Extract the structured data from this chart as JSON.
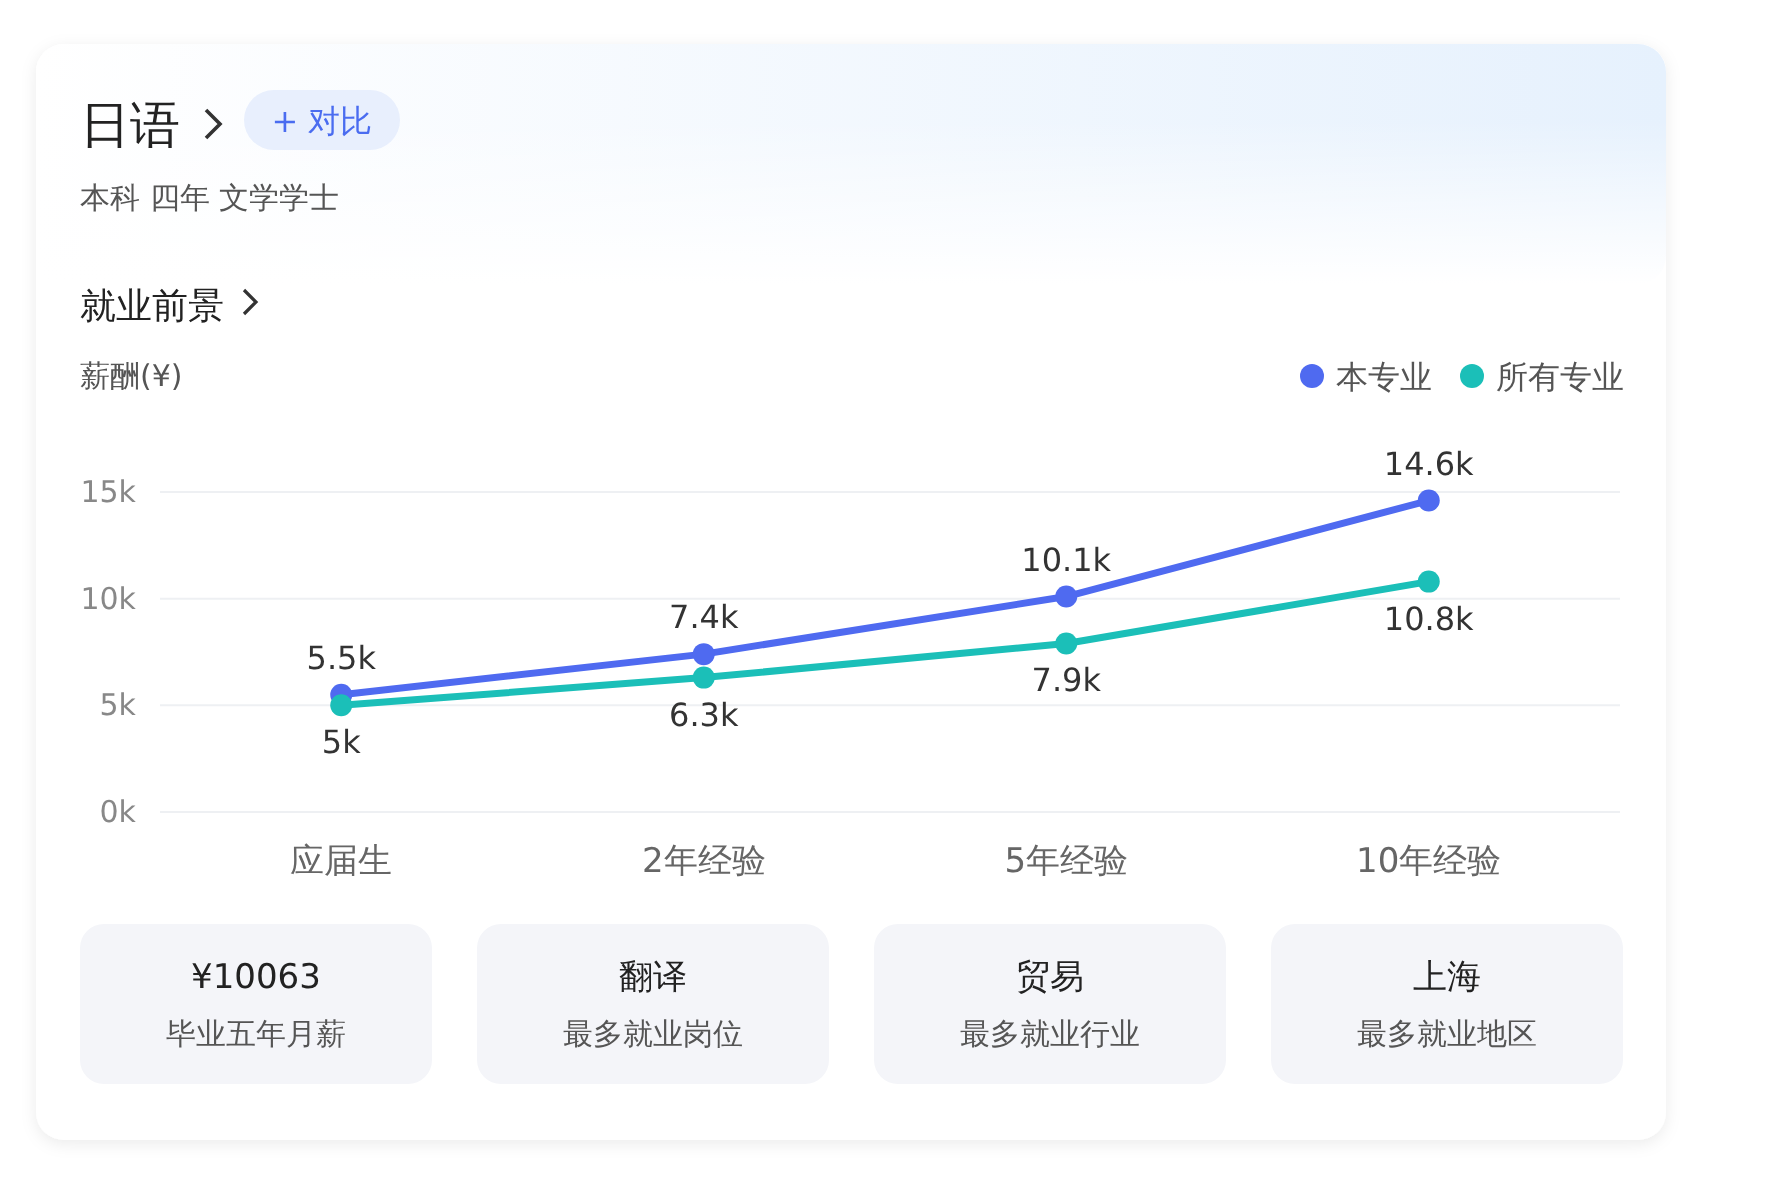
{
  "chart_data": [
    {
      "type": "line",
      "title": "日语",
      "subtitle": "本科 四年 文学学士",
      "annotations": [
        "+ 对比",
        "就业前景"
      ],
      "ylabel": "薪酬(¥)",
      "categories": [
        "应届生",
        "2年经验",
        "5年经验",
        "10年经验"
      ],
      "series": [
        {
          "name": "本专业",
          "color": "#4f6af0",
          "values": [
            5500,
            7400,
            10100,
            14600
          ],
          "value_labels": [
            "5.5k",
            "7.4k",
            "10.1k",
            "14.6k"
          ]
        },
        {
          "name": "所有专业",
          "color": "#1bbfb8",
          "values": [
            5000,
            6300,
            7900,
            10800
          ],
          "value_labels": [
            "5k",
            "6.3k",
            "7.9k",
            "10.8k"
          ]
        }
      ],
      "ylim": [
        0,
        15000
      ],
      "yticks": [
        {
          "value": 0,
          "label": "0k"
        },
        {
          "value": 5000,
          "label": "5k"
        },
        {
          "value": 10000,
          "label": "10k"
        },
        {
          "value": 15000,
          "label": "15k"
        }
      ],
      "grid": "y",
      "legend": "top right",
      "marker": "circle",
      "line_style": "solid"
    },
    {
      "type": "other",
      "annotations": [
        "¥10063",
        "毕业五年月薪",
        "翻译",
        "最多就业岗位",
        "贸易",
        "最多就业行业",
        "上海",
        "最多就业地区"
      ]
    }
  ]
}
